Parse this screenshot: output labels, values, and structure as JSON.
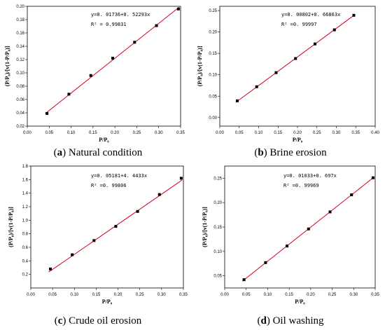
{
  "chart_data": [
    {
      "type": "scatter",
      "caption_letter": "a",
      "caption_text": "Natural condition",
      "xlabel": "P/P₀",
      "ylabel": "(P/P₀)/[v(1-P/P₀)]",
      "equation": "y=0. 01736+0. 52293x",
      "r2": "R² = 0.99831",
      "xlim": [
        0.0,
        0.35
      ],
      "ylim": [
        0.02,
        0.2
      ],
      "xticks": [
        "0.00",
        "0.05",
        "0.10",
        "0.15",
        "0.20",
        "0.25",
        "0.30",
        "0.35"
      ],
      "yticks": [
        "0.02",
        "0.04",
        "0.06",
        "0.08",
        "0.10",
        "0.12",
        "0.14",
        "0.16",
        "0.18",
        "0.20"
      ],
      "fit": {
        "intercept": 0.01736,
        "slope": 0.52293
      },
      "points": {
        "x": [
          0.045,
          0.095,
          0.145,
          0.195,
          0.245,
          0.295,
          0.345
        ],
        "y": [
          0.039,
          0.068,
          0.096,
          0.122,
          0.146,
          0.171,
          0.196
        ]
      },
      "series": [
        {
          "values_note": ""
        }
      ]
    },
    {
      "type": "scatter",
      "caption_letter": "b",
      "caption_text": "Brine erosion",
      "xlabel": "P/P₀",
      "ylabel": "(P/P₀)/[v(1-P/P₀)]",
      "equation": "y=0. 00802+0. 66863x",
      "r2": "R² =0. 99997",
      "xlim": [
        0.0,
        0.4
      ],
      "ylim": [
        -0.02,
        0.26
      ],
      "xticks": [
        "0.00",
        "0.05",
        "0.10",
        "0.15",
        "0.20",
        "0.25",
        "0.30",
        "0.35",
        "0.40"
      ],
      "yticks": [
        "0.00",
        "0.05",
        "0.10",
        "0.15",
        "0.20",
        "0.25"
      ],
      "fit": {
        "intercept": 0.00802,
        "slope": 0.66863
      },
      "points": {
        "x": [
          0.045,
          0.095,
          0.145,
          0.195,
          0.245,
          0.295,
          0.345
        ],
        "y": [
          0.039,
          0.072,
          0.105,
          0.138,
          0.172,
          0.205,
          0.239
        ]
      }
    },
    {
      "type": "scatter",
      "caption_letter": "c",
      "caption_text": "Crude oil erosion",
      "xlabel": "P/P₀",
      "ylabel": "(P/P₀)/[v(1-P/P₀)]",
      "equation": "y=0. 05181+4. 4433x",
      "r2": "R² =0. 99806",
      "xlim": [
        0.0,
        0.35
      ],
      "ylim": [
        0.0,
        1.8
      ],
      "xticks": [
        "0.00",
        "0.05",
        "0.10",
        "0.15",
        "0.20",
        "0.25",
        "0.30",
        "0.35"
      ],
      "yticks": [
        "0.2",
        "0.4",
        "0.6",
        "0.8",
        "1.0",
        "1.2",
        "1.4",
        "1.6",
        "1.8"
      ],
      "fit": {
        "intercept": 0.05181,
        "slope": 4.4433
      },
      "points": {
        "x": [
          0.045,
          0.095,
          0.145,
          0.195,
          0.245,
          0.295,
          0.345
        ],
        "y": [
          0.28,
          0.49,
          0.7,
          0.91,
          1.13,
          1.38,
          1.62
        ]
      }
    },
    {
      "type": "scatter",
      "caption_letter": "d",
      "caption_text": "Oil washing",
      "xlabel": "P/P₀",
      "ylabel": "(P/P₀)/[v(1-P/P₀)]",
      "equation": "y=0. 01033+0. 697x",
      "r2": "R² =0. 99969",
      "xlim": [
        0.0,
        0.35
      ],
      "ylim": [
        0.025,
        0.275
      ],
      "xticks": [
        "0.00",
        "0.05",
        "0.10",
        "0.15",
        "0.20",
        "0.25",
        "0.30",
        "0.35"
      ],
      "yticks": [
        "0.05",
        "0.10",
        "0.15",
        "0.20",
        "0.25"
      ],
      "fit": {
        "intercept": 0.01033,
        "slope": 0.697
      },
      "points": {
        "x": [
          0.045,
          0.095,
          0.145,
          0.195,
          0.245,
          0.295,
          0.345
        ],
        "y": [
          0.042,
          0.077,
          0.111,
          0.146,
          0.181,
          0.216,
          0.251
        ]
      }
    }
  ],
  "colors": {
    "fit_line": "#d0021b",
    "marker": "#000000",
    "axis": "#000000"
  }
}
